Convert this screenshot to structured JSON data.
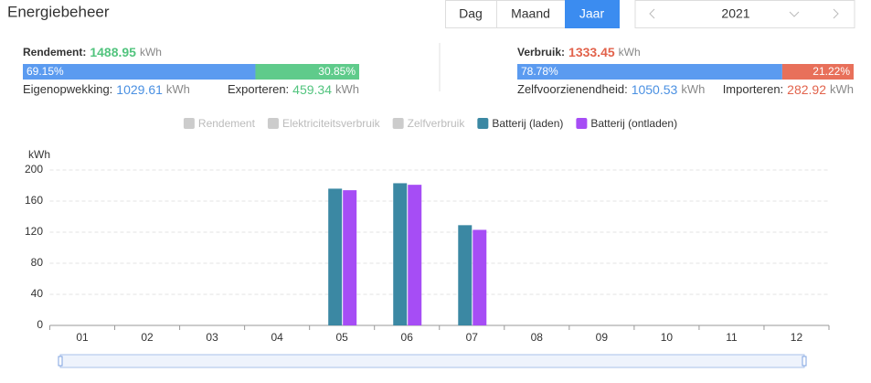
{
  "header": {
    "title": "Energiebeheer",
    "tabs": [
      "Dag",
      "Maand",
      "Jaar"
    ],
    "active_tab": 2,
    "year": "2021"
  },
  "summary": {
    "left": {
      "label": "Rendement:",
      "value": 1488.95,
      "unit": "kWh",
      "color": "#52c47e",
      "split": [
        {
          "value": 69.15,
          "label": "69.15%",
          "color": "#5b9bf0"
        },
        {
          "value": 30.85,
          "label": "30.85%",
          "color": "#5fcb8b"
        }
      ],
      "first": {
        "label": "Eigenopwekking:",
        "value": 1029.61,
        "unit": "kWh",
        "color": "#4a90e2"
      },
      "second": {
        "label": "Exporteren:",
        "value": 459.34,
        "unit": "kWh",
        "color": "#52c47e"
      }
    },
    "right": {
      "label": "Verbruik:",
      "value": 1333.45,
      "unit": "kWh",
      "color": "#e2634c",
      "split": [
        {
          "value": 78.78,
          "label": "78.78%",
          "color": "#5b9bf0"
        },
        {
          "value": 21.22,
          "label": "21.22%",
          "color": "#e8705a"
        }
      ],
      "first": {
        "label": "Zelfvoorzienendheid:",
        "value": 1050.53,
        "unit": "kWh",
        "color": "#4a90e2"
      },
      "second": {
        "label": "Importeren:",
        "value": 282.92,
        "unit": "kWh",
        "color": "#e2634c"
      }
    }
  },
  "chart_data": {
    "type": "bar",
    "y_label": "kWh",
    "categories": [
      "01",
      "02",
      "03",
      "04",
      "05",
      "06",
      "07",
      "08",
      "09",
      "10",
      "11",
      "12"
    ],
    "series": [
      {
        "name": "Rendement",
        "color": "#cccccc",
        "visible": false,
        "values": [
          null,
          null,
          null,
          null,
          null,
          null,
          null,
          null,
          null,
          null,
          null,
          null
        ]
      },
      {
        "name": "Elektriciteitsverbruik",
        "color": "#cccccc",
        "visible": false,
        "values": [
          null,
          null,
          null,
          null,
          null,
          null,
          null,
          null,
          null,
          null,
          null,
          null
        ]
      },
      {
        "name": "Zelfverbruik",
        "color": "#cccccc",
        "visible": false,
        "values": [
          null,
          null,
          null,
          null,
          null,
          null,
          null,
          null,
          null,
          null,
          null,
          null
        ]
      },
      {
        "name": "Batterij (laden)",
        "color": "#3b88a3",
        "visible": true,
        "values": [
          null,
          null,
          null,
          null,
          176,
          183,
          129,
          null,
          null,
          null,
          null,
          null
        ]
      },
      {
        "name": "Batterij (ontladen)",
        "color": "#a64df5",
        "visible": true,
        "values": [
          null,
          null,
          null,
          null,
          174,
          181,
          123,
          null,
          null,
          null,
          null,
          null
        ]
      }
    ],
    "ylim": [
      0,
      200
    ],
    "yticks": [
      0,
      40,
      80,
      120,
      160,
      200
    ],
    "grid": true
  }
}
